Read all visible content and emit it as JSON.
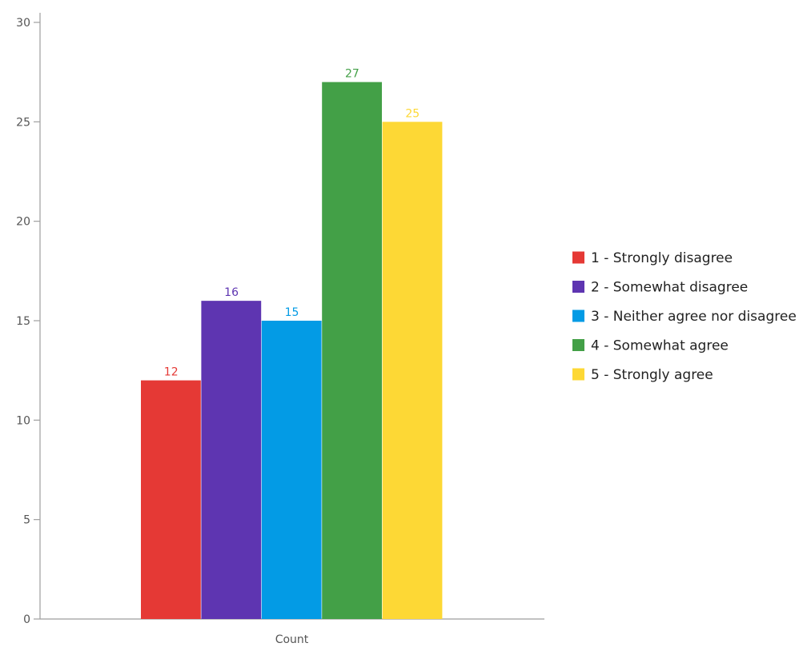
{
  "chart_data": {
    "type": "bar",
    "categories": [
      "Count"
    ],
    "series": [
      {
        "name": "1 - Strongly disagree",
        "color": "#e53935",
        "values": [
          12
        ]
      },
      {
        "name": "2 - Somewhat disagree",
        "color": "#5e35b1",
        "values": [
          16
        ]
      },
      {
        "name": "3 - Neither agree nor disagree",
        "color": "#039be5",
        "values": [
          15
        ]
      },
      {
        "name": "4 - Somewhat agree",
        "color": "#43a047",
        "values": [
          27
        ]
      },
      {
        "name": "5 - Strongly agree",
        "color": "#fdd835",
        "values": [
          25
        ]
      }
    ],
    "yticks": [
      0,
      5,
      10,
      15,
      20,
      25,
      30
    ],
    "ylim": [
      0,
      30
    ],
    "title": "",
    "xlabel": "",
    "ylabel": "",
    "grid": false,
    "legend_position": "right"
  }
}
